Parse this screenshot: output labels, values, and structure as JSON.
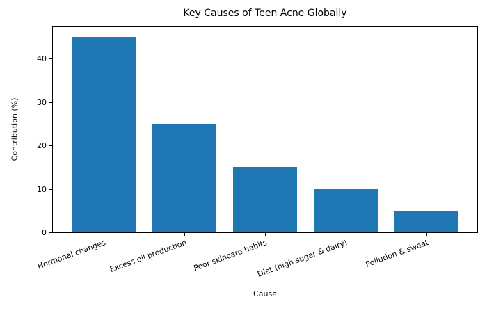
{
  "chart_data": {
    "type": "bar",
    "title": "Key Causes of Teen Acne Globally",
    "xlabel": "Cause",
    "ylabel": "Contribution (%)",
    "categories": [
      "Hormonal changes",
      "Excess oil production",
      "Poor skincare habits",
      "Diet (high sugar & dairy)",
      "Pollution & sweat"
    ],
    "values": [
      45,
      25,
      15,
      10,
      5
    ],
    "ylim": [
      0,
      47.25
    ],
    "yticks": [
      0,
      10,
      20,
      30,
      40
    ],
    "bar_color": "#1f77b4",
    "axis_color": "#000000",
    "grid": false,
    "legend": null,
    "x_tick_rotation_deg": 20,
    "bar_width_fraction": 0.8
  }
}
